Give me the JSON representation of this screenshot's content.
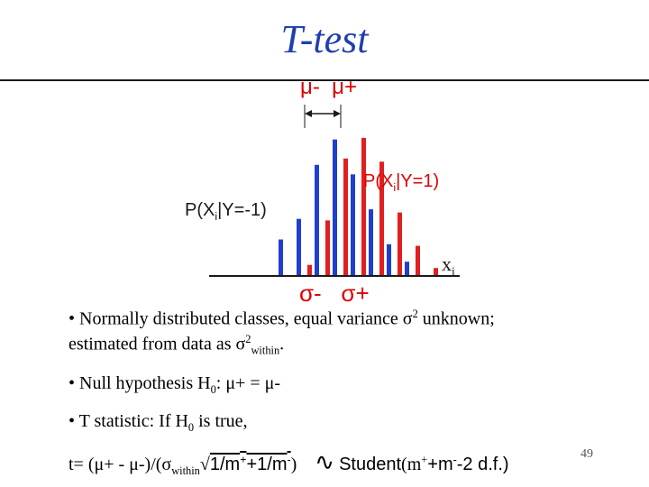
{
  "title": "T-test",
  "diagram": {
    "mu_minus": "μ-",
    "mu_plus": "μ+",
    "sigma_minus": "σ-",
    "sigma_plus": "σ+",
    "label_pos": {
      "main": "P(X",
      "sub": "i",
      "tail": "|Y=1)"
    },
    "label_neg": {
      "main": "P(X",
      "sub": "i",
      "tail": "|Y=-1)"
    },
    "axis_label": {
      "main": "x",
      "sub": "i"
    },
    "colors": {
      "blue": "#1f3fd0",
      "red": "#e02020",
      "text_red": "#e00000",
      "dark": "#1a1a1a"
    },
    "bars_blue": [
      0.23,
      0.36,
      0.7,
      0.86,
      0.64,
      0.42,
      0.2,
      0.09
    ],
    "bars_red": [
      0.07,
      0.35,
      0.74,
      0.87,
      0.72,
      0.4,
      0.19,
      0.05
    ]
  },
  "bullets": {
    "b1": {
      "prefix": "• Normally distributed classes, equal variance ",
      "sigma": "σ",
      "sup": "2",
      "suffix": " unknown;",
      "line2_prefix": "estimated from data as ",
      "line2_sigma": "σ",
      "line2_sup": "2",
      "line2_sub": "within",
      "line2_end": "."
    },
    "b2": {
      "prefix": "• Null hypothesis H",
      "sub": "0",
      "suffix": ": μ+ = μ-"
    },
    "b3": {
      "prefix": "• T statistic: If H",
      "sub": "0",
      "suffix": " is true,"
    }
  },
  "formula": {
    "lhs": "t= (μ+ - μ-)/(σ",
    "sub_within": "within",
    "sqrt_symbol": "√",
    "rad_1": "1/m",
    "rad_sup1": "+",
    "rad_2": "+1/m",
    "rad_sup2": "-",
    "close": ")",
    "tilde": "∿",
    "student": "Student",
    "student_open": "(m",
    "student_sup1": "+",
    "student_mid": "+m",
    "student_sup2": "-",
    "student_tail": "-2 d.f.)"
  },
  "slide_number": "49"
}
